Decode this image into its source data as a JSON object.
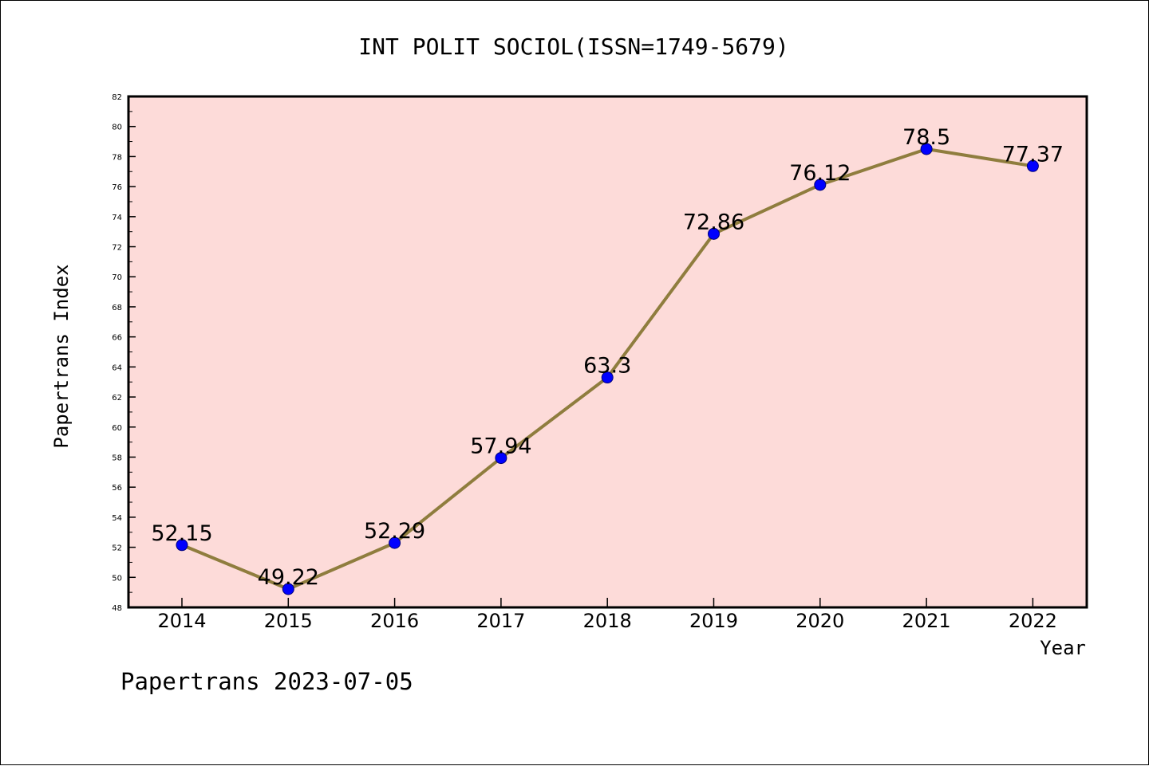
{
  "chart_data": {
    "type": "line",
    "title": "INT POLIT SOCIOL(ISSN=1749-5679)",
    "xlabel": "Year",
    "ylabel": "Papertrans Index",
    "footer": "Papertrans 2023-07-05",
    "categories": [
      "2014",
      "2015",
      "2016",
      "2017",
      "2018",
      "2019",
      "2020",
      "2021",
      "2022"
    ],
    "values": [
      52.15,
      49.22,
      52.29,
      57.94,
      63.3,
      72.86,
      76.12,
      78.5,
      77.37
    ],
    "value_labels": [
      "52.15",
      "49.22",
      "52.29",
      "57.94",
      "63.3",
      "72.86",
      "76.12",
      "78.5",
      "77.37"
    ],
    "ylim": [
      48,
      82
    ],
    "y_ticks": [
      "48",
      "50",
      "52",
      "54",
      "56",
      "58",
      "60",
      "62",
      "64",
      "66",
      "68",
      "70",
      "72",
      "74",
      "76",
      "78",
      "80",
      "82"
    ],
    "grid": false,
    "legend": "none",
    "colors": {
      "plot_background": "#fddbd9",
      "line": "#8f7d3e",
      "marker": "#0000ff",
      "axis": "#000000"
    }
  }
}
